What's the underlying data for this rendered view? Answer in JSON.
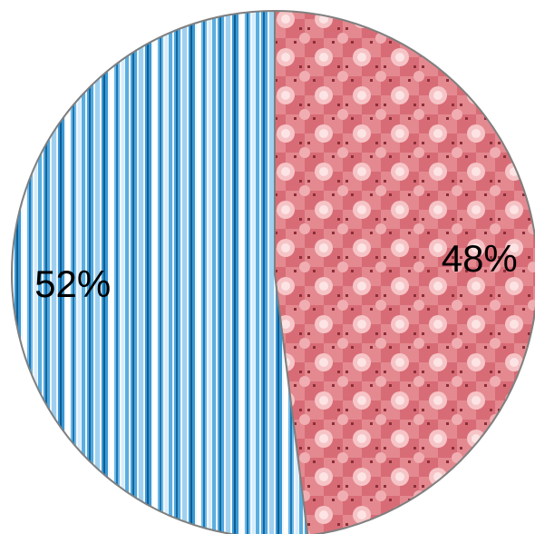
{
  "chart_data": {
    "type": "pie",
    "title": "",
    "start_angle_deg": 0,
    "direction": "clockwise",
    "legend": "none",
    "slices": [
      {
        "value": 48,
        "label": "48%",
        "color": "#e98a90",
        "pattern": "pink-polka-check"
      },
      {
        "value": 52,
        "label": "52%",
        "color": "#7fbde8",
        "pattern": "blue-vertical-stripes"
      }
    ]
  }
}
